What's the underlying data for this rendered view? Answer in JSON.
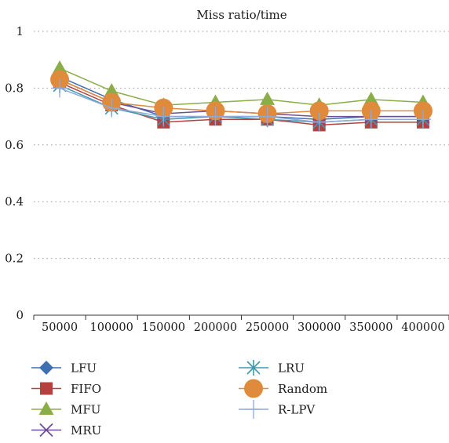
{
  "chart_data": {
    "type": "line",
    "title": "Miss ratio/time",
    "xlabel": "",
    "ylabel": "",
    "categories": [
      "50000",
      "100000",
      "150000",
      "200000",
      "250000",
      "300000",
      "350000",
      "400000"
    ],
    "ylim": [
      0,
      1
    ],
    "yticks": [
      "0",
      "0.2",
      "0.4",
      "0.6",
      "0.8",
      "1"
    ],
    "grid": "horizontal-dotted",
    "legend_position": "bottom",
    "series": [
      {
        "name": "LFU",
        "color": "#3e6fb0",
        "marker": "diamond",
        "values": [
          0.84,
          0.76,
          0.7,
          0.7,
          0.7,
          0.69,
          0.7,
          0.7
        ]
      },
      {
        "name": "FIFO",
        "color": "#b5413f",
        "marker": "square",
        "values": [
          0.82,
          0.74,
          0.68,
          0.69,
          0.69,
          0.67,
          0.68,
          0.68
        ]
      },
      {
        "name": "MFU",
        "color": "#8bad48",
        "marker": "triangle",
        "values": [
          0.87,
          0.79,
          0.74,
          0.75,
          0.76,
          0.74,
          0.76,
          0.75
        ]
      },
      {
        "name": "MRU",
        "color": "#6e4f96",
        "marker": "x",
        "values": [
          0.83,
          0.75,
          0.71,
          0.72,
          0.71,
          0.7,
          0.7,
          0.7
        ]
      },
      {
        "name": "LRU",
        "color": "#3f9aae",
        "marker": "star",
        "values": [
          0.81,
          0.73,
          0.69,
          0.7,
          0.69,
          0.68,
          0.69,
          0.69
        ]
      },
      {
        "name": "Random",
        "color": "#e08a3c",
        "marker": "circle",
        "values": [
          0.83,
          0.75,
          0.73,
          0.72,
          0.71,
          0.72,
          0.72,
          0.72
        ]
      },
      {
        "name": "R-LPV",
        "color": "#8fa9d8",
        "marker": "plus",
        "values": [
          0.8,
          0.73,
          0.7,
          0.7,
          0.7,
          0.68,
          0.69,
          0.69
        ]
      }
    ]
  }
}
